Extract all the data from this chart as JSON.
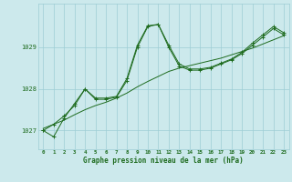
{
  "x": [
    0,
    1,
    2,
    3,
    4,
    5,
    6,
    7,
    8,
    9,
    10,
    11,
    12,
    13,
    14,
    15,
    16,
    17,
    18,
    19,
    20,
    21,
    22,
    23
  ],
  "y_main": [
    1027.0,
    1026.85,
    1027.3,
    1027.65,
    1028.0,
    1027.75,
    1027.75,
    1027.8,
    1028.2,
    1029.0,
    1029.5,
    1029.55,
    1029.0,
    1028.55,
    1028.45,
    1028.45,
    1028.5,
    1028.6,
    1028.7,
    1028.85,
    1029.05,
    1029.25,
    1029.45,
    1029.3
  ],
  "y_smooth": [
    1027.05,
    1027.15,
    1027.25,
    1027.38,
    1027.5,
    1027.6,
    1027.68,
    1027.78,
    1027.9,
    1028.05,
    1028.18,
    1028.3,
    1028.42,
    1028.5,
    1028.56,
    1028.62,
    1028.68,
    1028.74,
    1028.82,
    1028.9,
    1028.98,
    1029.08,
    1029.18,
    1029.28
  ],
  "y_upper": [
    1027.0,
    1027.15,
    1027.35,
    1027.6,
    1028.0,
    1027.78,
    1027.78,
    1027.82,
    1028.25,
    1029.05,
    1029.52,
    1029.55,
    1029.05,
    1028.6,
    1028.48,
    1028.48,
    1028.52,
    1028.62,
    1028.72,
    1028.88,
    1029.1,
    1029.3,
    1029.5,
    1029.35
  ],
  "background_color": "#cce9ec",
  "grid_color": "#9dcdd4",
  "line_color": "#1e6b1e",
  "title": "Graphe pression niveau de la mer (hPa)",
  "tick_color": "#1e6b1e",
  "ylim": [
    1026.55,
    1030.05
  ],
  "yticks": [
    1027,
    1028,
    1029
  ],
  "xticks": [
    0,
    1,
    2,
    3,
    4,
    5,
    6,
    7,
    8,
    9,
    10,
    11,
    12,
    13,
    14,
    15,
    16,
    17,
    18,
    19,
    20,
    21,
    22,
    23
  ]
}
